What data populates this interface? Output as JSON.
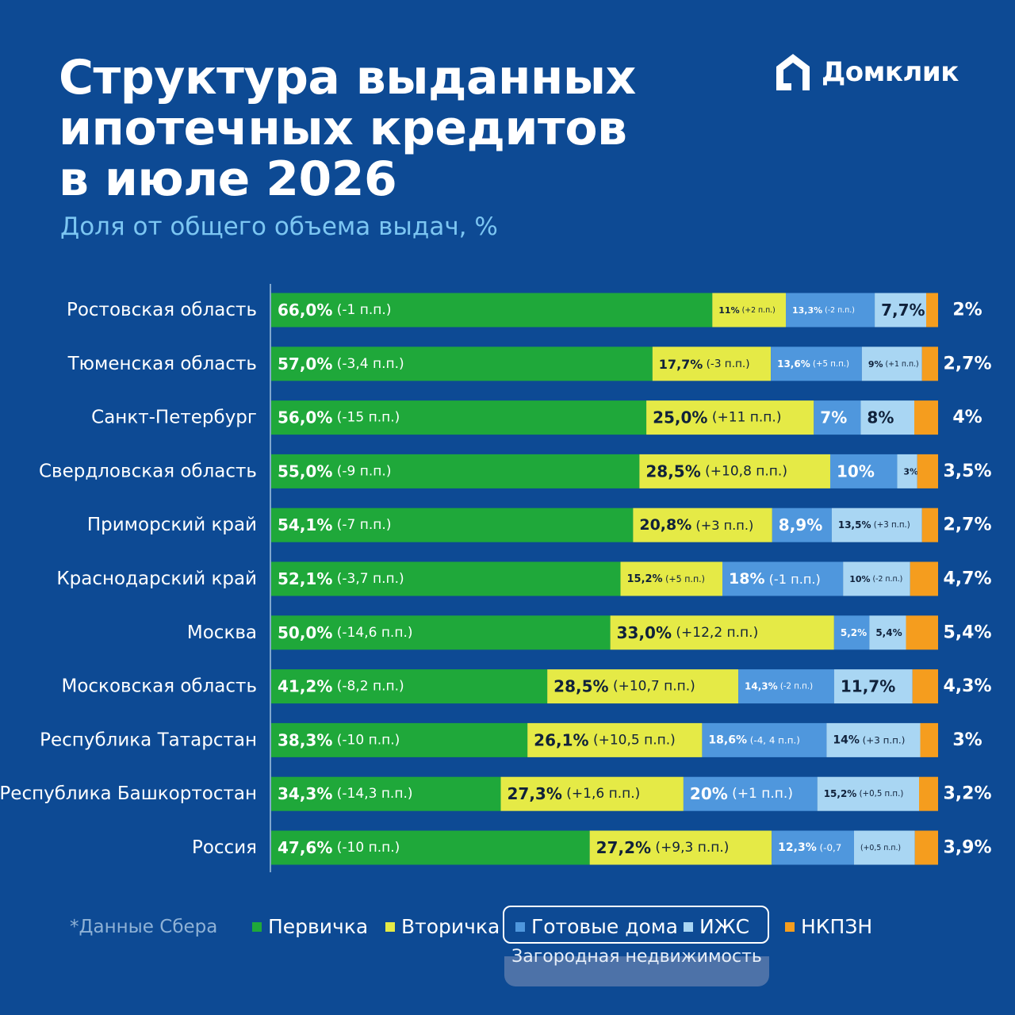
{
  "title_lines": [
    "Структура выданных",
    "ипотечных кредитов",
    "в июле 2026"
  ],
  "subtitle": "Доля от общего объема выдач, %",
  "brand": "Домклик",
  "footnote": "*Данные Сбера",
  "legend": {
    "primary": "Первичка",
    "secondary": "Вторичка",
    "ready_houses": "Готовые дома",
    "izhs": "ИЖС",
    "nkpzn": "НКПЗН",
    "group_label": "Загородная недвижимость"
  },
  "colors": {
    "background": "#0d4a94",
    "primary": "#1fa83a",
    "secondary": "#e5ea46",
    "ready_houses": "#4f97dd",
    "izhs": "#a9d6f3",
    "nkpzn": "#f59d1e"
  },
  "chart_data": {
    "type": "bar",
    "orientation": "horizontal",
    "stacked": true,
    "categories": [
      "Ростовская область",
      "Тюменская область",
      "Санкт-Петербург",
      "Свердловская область",
      "Приморский край",
      "Краснодарский край",
      "Москва",
      "Московская область",
      "Республика Татарстан",
      "Республика Башкортостан",
      "Россия"
    ],
    "series": [
      {
        "name": "Первичка",
        "values": [
          66.0,
          57.0,
          56.0,
          55.0,
          54.1,
          52.1,
          50.0,
          41.2,
          38.3,
          34.3,
          47.6
        ],
        "labels": [
          "66,0%",
          "57,0%",
          "56,0%",
          "55,0%",
          "54,1%",
          "52,1%",
          "50,0%",
          "41,2%",
          "38,3%",
          "34,3%",
          "47,6%"
        ],
        "changes": [
          "(-1 п.п.)",
          "(-3,4 п.п.)",
          "(-15 п.п.)",
          "(-9 п.п.)",
          "(-7 п.п.)",
          "(-3,7 п.п.)",
          "(-14,6 п.п.)",
          "(-8,2 п.п.)",
          "(-10 п.п.)",
          "(-14,3 п.п.)",
          "(-10 п.п.)"
        ]
      },
      {
        "name": "Вторичка",
        "values": [
          11,
          17.7,
          25.0,
          28.5,
          20.8,
          15.2,
          33.0,
          28.5,
          26.1,
          27.3,
          27.2
        ],
        "labels": [
          "11%",
          "17,7%",
          "25,0%",
          "28,5%",
          "20,8%",
          "15,2%",
          "33,0%",
          "28,5%",
          "26,1%",
          "27,3%",
          "27,2%"
        ],
        "changes": [
          "(+2 п.п.)",
          "(-3 п.п.)",
          "(+11 п.п.)",
          "(+10,8 п.п.)",
          "(+3 п.п.)",
          "(+5 п.п.)",
          "(+12,2 п.п.)",
          "(+10,7 п.п.)",
          "(+10,5 п.п.)",
          "(+1,6 п.п.)",
          "(+9,3 п.п.)"
        ]
      },
      {
        "name": "Готовые дома",
        "values": [
          13.3,
          13.6,
          7,
          10,
          8.9,
          18,
          5.2,
          14.3,
          18.6,
          20,
          12.3
        ],
        "labels": [
          "13,3%",
          "13,6%",
          "7%",
          "10%",
          "8,9%",
          "18%",
          "5,2%",
          "14,3%",
          "18,6%",
          "20%",
          "12,3%"
        ],
        "changes": [
          "(-2 п.п.)",
          "(+5 п.п.)",
          "",
          "",
          "",
          "(-1 п.п.)",
          "",
          "(-2 п.п.)",
          "(-4, 4 п.п.)",
          "(+1 п.п.)",
          "(-0,7"
        ]
      },
      {
        "name": "ИЖС",
        "values": [
          7.7,
          9,
          8,
          3,
          13.5,
          10,
          5.4,
          11.7,
          14,
          15.2,
          9.1
        ],
        "labels": [
          "7,7%",
          "9%",
          "8%",
          "3%",
          "13,5%",
          "10%",
          "5,4%",
          "11,7%",
          "14%",
          "15,2%",
          ""
        ],
        "changes": [
          "",
          "(+1 п.п.)",
          "",
          "",
          "(+3 п.п.)",
          "(-2 п.п.)",
          "",
          "",
          "(+3 п.п.)",
          "(+0,5 п.п.)",
          "(+0,5 п.п.)"
        ]
      },
      {
        "name": "НКПЗН",
        "values": [
          2,
          2.7,
          4,
          3.5,
          2.7,
          4.7,
          5.4,
          4.3,
          3,
          3.2,
          3.9
        ],
        "labels": [
          "2%",
          "2,7%",
          "4%",
          "3,5%",
          "2,7%",
          "4,7%",
          "5,4%",
          "4,3%",
          "3%",
          "3,2%",
          "3,9%"
        ]
      }
    ],
    "xlim": [
      0,
      100
    ]
  }
}
